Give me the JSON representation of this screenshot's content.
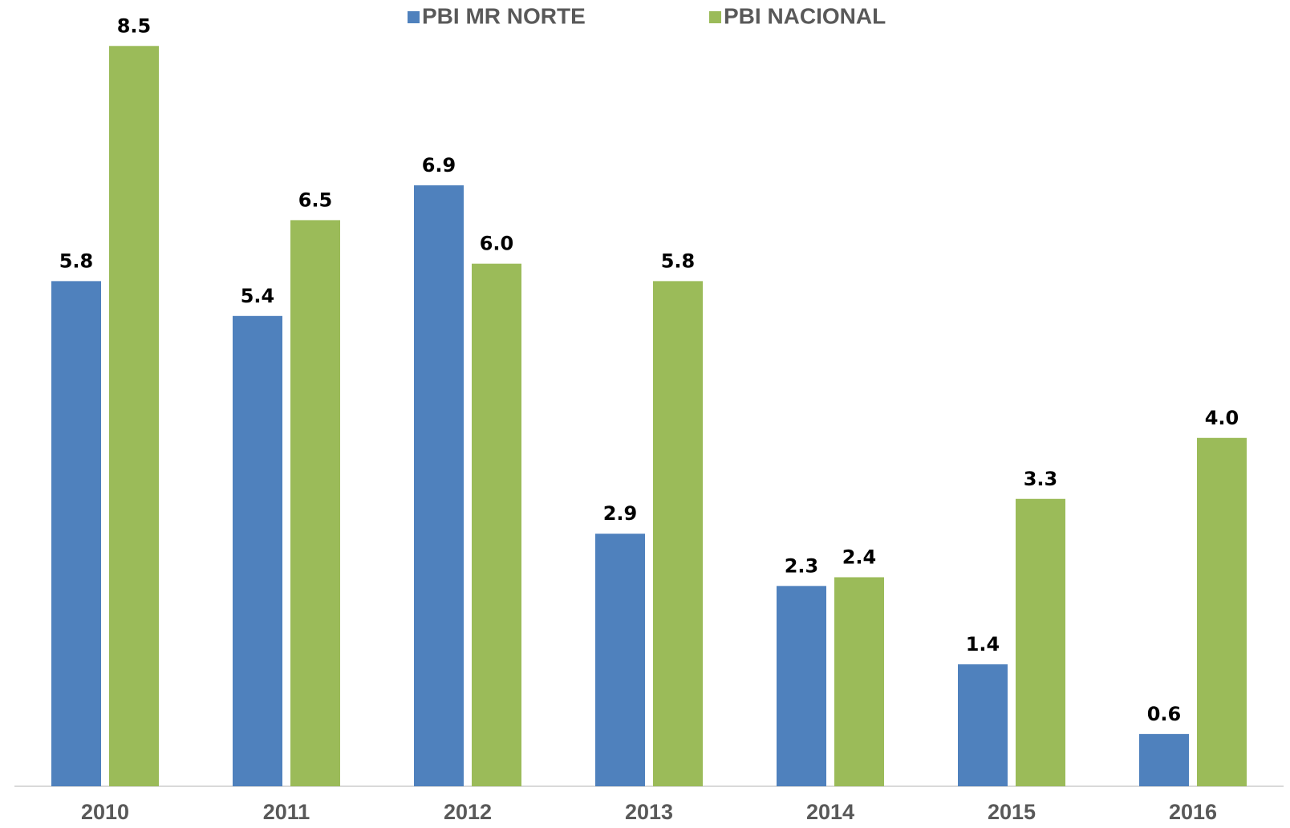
{
  "chart_data": {
    "type": "bar",
    "categories": [
      "2010",
      "2011",
      "2012",
      "2013",
      "2014",
      "2015",
      "2016"
    ],
    "series": [
      {
        "name": "PBI MR NORTE",
        "color": "#4f81bd",
        "values": [
          5.8,
          5.4,
          6.9,
          2.9,
          2.3,
          1.4,
          0.6
        ]
      },
      {
        "name": "PBI NACIONAL",
        "color": "#9bbb59",
        "values": [
          8.5,
          6.5,
          6.0,
          5.8,
          2.4,
          3.3,
          4.0
        ],
        "value_labels": [
          "8.5",
          "6.5",
          "6.0",
          "5.8",
          "2.4",
          "3.3",
          "4.0"
        ]
      }
    ],
    "ylim": [
      0,
      9
    ]
  }
}
